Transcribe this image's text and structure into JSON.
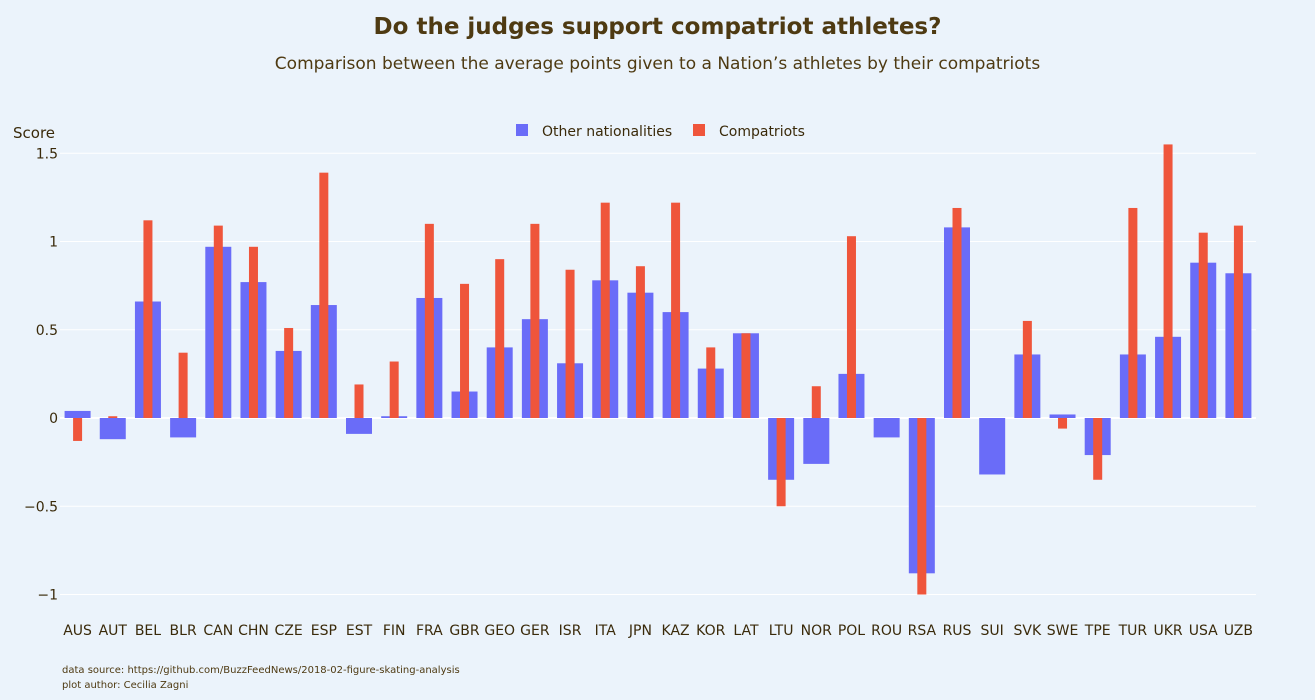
{
  "title": "Do the judges support compatriot athletes?",
  "subtitle": "Comparison between the average points given to a Nation’s athletes by their compatriots",
  "footer": {
    "source": "data source: https://github.com/BuzzFeedNews/2018-02-figure-skating-analysis",
    "author": "plot author: Cecilia Zagni"
  },
  "colors": {
    "background": "#ebf3fb",
    "other": "#6a6cf8",
    "compatriots": "#ef553b",
    "grid": "#ffffff",
    "text": "#4e3a12"
  },
  "chart_data": {
    "type": "bar",
    "ylabel": "Score",
    "xlabel": "",
    "ylim": [
      -1.08,
      1.55
    ],
    "yticks": [
      -1,
      -0.5,
      0,
      0.5,
      1,
      1.5
    ],
    "ytick_labels": [
      "−1",
      "−0.5",
      "0",
      "0.5",
      "1",
      "1.5"
    ],
    "grid": true,
    "legend_position": "top-center",
    "categories": [
      "AUS",
      "AUT",
      "BEL",
      "BLR",
      "CAN",
      "CHN",
      "CZE",
      "ESP",
      "EST",
      "FIN",
      "FRA",
      "GBR",
      "GEO",
      "GER",
      "ISR",
      "ITA",
      "JPN",
      "KAZ",
      "KOR",
      "LAT",
      "LTU",
      "NOR",
      "POL",
      "ROU",
      "RSA",
      "RUS",
      "SUI",
      "SVK",
      "SWE",
      "TPE",
      "TUR",
      "UKR",
      "USA",
      "UZB"
    ],
    "series": [
      {
        "name": "Other nationalities",
        "values": [
          0.04,
          -0.12,
          0.66,
          -0.11,
          0.97,
          0.77,
          0.38,
          0.64,
          -0.09,
          0.01,
          0.68,
          0.15,
          0.4,
          0.56,
          0.31,
          0.78,
          0.71,
          0.6,
          0.28,
          0.48,
          -0.35,
          -0.26,
          0.25,
          -0.11,
          -0.88,
          1.08,
          -0.32,
          0.36,
          0.02,
          -0.21,
          0.36,
          0.46,
          0.88,
          0.82
        ]
      },
      {
        "name": "Compatriots",
        "values": [
          -0.13,
          0.01,
          1.12,
          0.37,
          1.09,
          0.97,
          0.51,
          1.39,
          0.19,
          0.32,
          1.1,
          0.76,
          0.9,
          1.1,
          0.84,
          1.22,
          0.86,
          1.22,
          0.4,
          0.48,
          -0.5,
          0.18,
          1.03,
          null,
          -1.0,
          1.19,
          null,
          0.55,
          -0.06,
          -0.35,
          1.19,
          1.55,
          1.05,
          1.09
        ]
      }
    ]
  }
}
